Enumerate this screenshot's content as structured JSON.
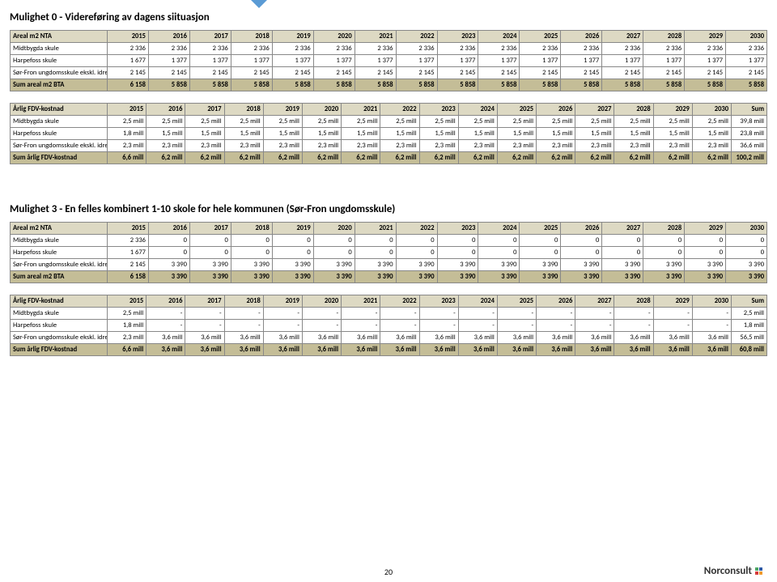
{
  "page_number": "20",
  "logo_text": "Norconsult",
  "logo_colors": [
    "#4aa564",
    "#2e5aa8",
    "#d63b3b",
    "#f19b2c"
  ],
  "section0": {
    "title": "Mulighet 0 - Videreføring av dagens siituasjon",
    "table_a": {
      "header": [
        "Areal m2 NTA",
        "2015",
        "2016",
        "2017",
        "2018",
        "2019",
        "2020",
        "2021",
        "2022",
        "2023",
        "2024",
        "2025",
        "2026",
        "2027",
        "2028",
        "2029",
        "2030"
      ],
      "rows": [
        [
          "Midtbygda skule",
          "2 336",
          "2 336",
          "2 336",
          "2 336",
          "2 336",
          "2 336",
          "2 336",
          "2 336",
          "2 336",
          "2 336",
          "2 336",
          "2 336",
          "2 336",
          "2 336",
          "2 336",
          "2 336"
        ],
        [
          "Harpefoss skule",
          "1 677",
          "1 377",
          "1 377",
          "1 377",
          "1 377",
          "1 377",
          "1 377",
          "1 377",
          "1 377",
          "1 377",
          "1 377",
          "1 377",
          "1 377",
          "1 377",
          "1 377",
          "1 377"
        ],
        [
          "Sør-Fron ungdomsskule ekskl. idrettshall",
          "2 145",
          "2 145",
          "2 145",
          "2 145",
          "2 145",
          "2 145",
          "2 145",
          "2 145",
          "2 145",
          "2 145",
          "2 145",
          "2 145",
          "2 145",
          "2 145",
          "2 145",
          "2 145"
        ]
      ],
      "sum": [
        "Sum areal m2 BTA",
        "6 158",
        "5 858",
        "5 858",
        "5 858",
        "5 858",
        "5 858",
        "5 858",
        "5 858",
        "5 858",
        "5 858",
        "5 858",
        "5 858",
        "5 858",
        "5 858",
        "5 858",
        "5 858"
      ]
    },
    "table_b": {
      "header": [
        "Årlig FDV-kostnad",
        "2015",
        "2016",
        "2017",
        "2018",
        "2019",
        "2020",
        "2021",
        "2022",
        "2023",
        "2024",
        "2025",
        "2026",
        "2027",
        "2028",
        "2029",
        "2030",
        "Sum"
      ],
      "rows": [
        [
          "Midtbygda skule",
          "2,5 mill",
          "2,5 mill",
          "2,5 mill",
          "2,5 mill",
          "2,5 mill",
          "2,5 mill",
          "2,5 mill",
          "2,5 mill",
          "2,5 mill",
          "2,5 mill",
          "2,5 mill",
          "2,5 mill",
          "2,5 mill",
          "2,5 mill",
          "2,5 mill",
          "2,5 mill",
          "39,8 mill"
        ],
        [
          "Harpefoss skule",
          "1,8 mill",
          "1,5 mill",
          "1,5 mill",
          "1,5 mill",
          "1,5 mill",
          "1,5 mill",
          "1,5 mill",
          "1,5 mill",
          "1,5 mill",
          "1,5 mill",
          "1,5 mill",
          "1,5 mill",
          "1,5 mill",
          "1,5 mill",
          "1,5 mill",
          "1,5 mill",
          "23,8 mill"
        ],
        [
          "Sør-Fron ungdomsskule ekskl. idrettshall",
          "2,3 mill",
          "2,3 mill",
          "2,3 mill",
          "2,3 mill",
          "2,3 mill",
          "2,3 mill",
          "2,3 mill",
          "2,3 mill",
          "2,3 mill",
          "2,3 mill",
          "2,3 mill",
          "2,3 mill",
          "2,3 mill",
          "2,3 mill",
          "2,3 mill",
          "2,3 mill",
          "36,6 mill"
        ]
      ],
      "sum": [
        "Sum årlig FDV-kostnad",
        "6,6 mill",
        "6,2 mill",
        "6,2 mill",
        "6,2 mill",
        "6,2 mill",
        "6,2 mill",
        "6,2 mill",
        "6,2 mill",
        "6,2 mill",
        "6,2 mill",
        "6,2 mill",
        "6,2 mill",
        "6,2 mill",
        "6,2 mill",
        "6,2 mill",
        "6,2 mill",
        "100,2 mill"
      ]
    }
  },
  "section3": {
    "title": "Mulighet 3 - En felles kombinert 1-10 skole for hele kommunen (Sør-Fron ungdomsskule)",
    "table_a": {
      "header": [
        "Areal m2 NTA",
        "2015",
        "2016",
        "2017",
        "2018",
        "2019",
        "2020",
        "2021",
        "2022",
        "2023",
        "2024",
        "2025",
        "2026",
        "2027",
        "2028",
        "2029",
        "2030"
      ],
      "rows": [
        [
          "Midtbygda skule",
          "2 336",
          "0",
          "0",
          "0",
          "0",
          "0",
          "0",
          "0",
          "0",
          "0",
          "0",
          "0",
          "0",
          "0",
          "0",
          "0"
        ],
        [
          "Harpefoss skule",
          "1 677",
          "0",
          "0",
          "0",
          "0",
          "0",
          "0",
          "0",
          "0",
          "0",
          "0",
          "0",
          "0",
          "0",
          "0",
          "0"
        ],
        [
          "Sør-Fron ungdomsskule ekskl. idrettshall",
          "2 145",
          "3 390",
          "3 390",
          "3 390",
          "3 390",
          "3 390",
          "3 390",
          "3 390",
          "3 390",
          "3 390",
          "3 390",
          "3 390",
          "3 390",
          "3 390",
          "3 390",
          "3 390"
        ]
      ],
      "sum": [
        "Sum areal m2 BTA",
        "6 158",
        "3 390",
        "3 390",
        "3 390",
        "3 390",
        "3 390",
        "3 390",
        "3 390",
        "3 390",
        "3 390",
        "3 390",
        "3 390",
        "3 390",
        "3 390",
        "3 390",
        "3 390"
      ]
    },
    "table_b": {
      "header": [
        "Årlig FDV-kostnad",
        "2015",
        "2016",
        "2017",
        "2018",
        "2019",
        "2020",
        "2021",
        "2022",
        "2023",
        "2024",
        "2025",
        "2026",
        "2027",
        "2028",
        "2029",
        "2030",
        "Sum"
      ],
      "rows": [
        [
          "Midtbygda skule",
          "2,5 mill",
          "-",
          "-",
          "-",
          "-",
          "-",
          "-",
          "-",
          "-",
          "-",
          "-",
          "-",
          "-",
          "-",
          "-",
          "-",
          "2,5 mill"
        ],
        [
          "Harpefoss skule",
          "1,8 mill",
          "-",
          "-",
          "-",
          "-",
          "-",
          "-",
          "-",
          "-",
          "-",
          "-",
          "-",
          "-",
          "-",
          "-",
          "-",
          "1,8 mill"
        ],
        [
          "Sør-Fron ungdomsskule ekskl. idrettshall",
          "2,3 mill",
          "3,6 mill",
          "3,6 mill",
          "3,6 mill",
          "3,6 mill",
          "3,6 mill",
          "3,6 mill",
          "3,6 mill",
          "3,6 mill",
          "3,6 mill",
          "3,6 mill",
          "3,6 mill",
          "3,6 mill",
          "3,6 mill",
          "3,6 mill",
          "3,6 mill",
          "56,5 mill"
        ]
      ],
      "sum": [
        "Sum årlig FDV-kostnad",
        "6,6 mill",
        "3,6 mill",
        "3,6 mill",
        "3,6 mill",
        "3,6 mill",
        "3,6 mill",
        "3,6 mill",
        "3,6 mill",
        "3,6 mill",
        "3,6 mill",
        "3,6 mill",
        "3,6 mill",
        "3,6 mill",
        "3,6 mill",
        "3,6 mill",
        "3,6 mill",
        "60,8 mill"
      ]
    }
  }
}
